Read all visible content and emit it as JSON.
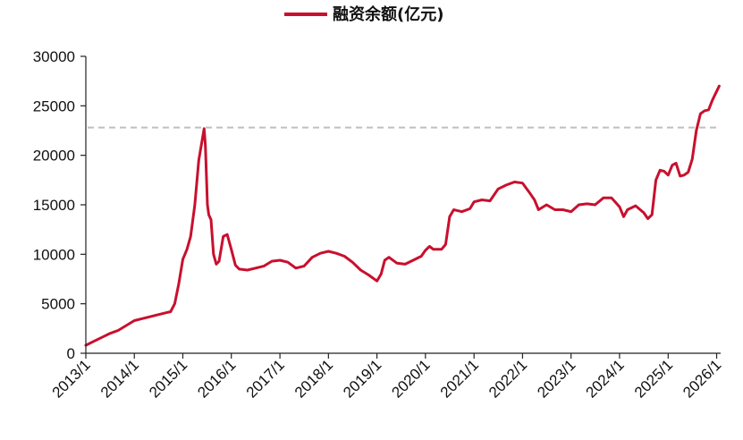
{
  "chart_data": {
    "type": "line",
    "title": "",
    "xlabel": "",
    "ylabel": "",
    "ylim": [
      0,
      30000
    ],
    "yticks": [
      0,
      5000,
      10000,
      15000,
      20000,
      25000,
      30000
    ],
    "xlim": [
      "2013-01-01",
      "2026-01-31"
    ],
    "xticks": [
      {
        "date": "2013-01-01",
        "label": "2013/1"
      },
      {
        "date": "2014-01-01",
        "label": "2014/1"
      },
      {
        "date": "2015-01-01",
        "label": "2015/1"
      },
      {
        "date": "2016-01-01",
        "label": "2016/1"
      },
      {
        "date": "2017-01-01",
        "label": "2017/1"
      },
      {
        "date": "2018-01-01",
        "label": "2018/1"
      },
      {
        "date": "2019-01-01",
        "label": "2019/1"
      },
      {
        "date": "2020-01-01",
        "label": "2020/1"
      },
      {
        "date": "2021-01-01",
        "label": "2021/1"
      },
      {
        "date": "2022-01-01",
        "label": "2022/1"
      },
      {
        "date": "2023-01-01",
        "label": "2023/1"
      },
      {
        "date": "2024-01-01",
        "label": "2024/1"
      },
      {
        "date": "2025-01-01",
        "label": "2025/1"
      },
      {
        "date": "2026-01-01",
        "label": "2026/1"
      }
    ],
    "legend_position": "top-center",
    "grid": false,
    "reference_line": {
      "y": 22800,
      "style": "dashed",
      "color": "#bfbfbf"
    },
    "series": [
      {
        "name": "融资余额(亿元)",
        "color": "#c8102e",
        "points": [
          [
            "2013-01-01",
            800
          ],
          [
            "2013-03-01",
            1200
          ],
          [
            "2013-05-01",
            1600
          ],
          [
            "2013-07-01",
            2000
          ],
          [
            "2013-09-01",
            2300
          ],
          [
            "2013-11-01",
            2800
          ],
          [
            "2014-01-01",
            3300
          ],
          [
            "2014-03-01",
            3500
          ],
          [
            "2014-05-01",
            3700
          ],
          [
            "2014-07-01",
            3900
          ],
          [
            "2014-09-01",
            4100
          ],
          [
            "2014-10-01",
            4200
          ],
          [
            "2014-11-01",
            5000
          ],
          [
            "2014-12-01",
            7000
          ],
          [
            "2015-01-01",
            9500
          ],
          [
            "2015-02-01",
            10500
          ],
          [
            "2015-03-01",
            11800
          ],
          [
            "2015-04-01",
            15000
          ],
          [
            "2015-05-01",
            19500
          ],
          [
            "2015-06-10",
            22700
          ],
          [
            "2015-06-20",
            21000
          ],
          [
            "2015-07-05",
            15000
          ],
          [
            "2015-07-15",
            14000
          ],
          [
            "2015-08-01",
            13500
          ],
          [
            "2015-08-20",
            10000
          ],
          [
            "2015-09-10",
            9000
          ],
          [
            "2015-10-01",
            9300
          ],
          [
            "2015-11-01",
            11800
          ],
          [
            "2015-12-01",
            12000
          ],
          [
            "2016-01-01",
            10500
          ],
          [
            "2016-02-01",
            8900
          ],
          [
            "2016-03-01",
            8500
          ],
          [
            "2016-05-01",
            8400
          ],
          [
            "2016-07-01",
            8600
          ],
          [
            "2016-09-01",
            8800
          ],
          [
            "2016-11-01",
            9300
          ],
          [
            "2017-01-01",
            9400
          ],
          [
            "2017-03-01",
            9200
          ],
          [
            "2017-05-01",
            8600
          ],
          [
            "2017-07-01",
            8800
          ],
          [
            "2017-09-01",
            9700
          ],
          [
            "2017-11-01",
            10100
          ],
          [
            "2018-01-01",
            10300
          ],
          [
            "2018-03-01",
            10100
          ],
          [
            "2018-05-01",
            9800
          ],
          [
            "2018-07-01",
            9200
          ],
          [
            "2018-09-01",
            8400
          ],
          [
            "2018-11-01",
            7900
          ],
          [
            "2019-01-01",
            7300
          ],
          [
            "2019-02-01",
            8000
          ],
          [
            "2019-03-01",
            9400
          ],
          [
            "2019-04-01",
            9700
          ],
          [
            "2019-06-01",
            9100
          ],
          [
            "2019-08-01",
            9000
          ],
          [
            "2019-10-01",
            9400
          ],
          [
            "2019-12-01",
            9800
          ],
          [
            "2020-01-01",
            10400
          ],
          [
            "2020-02-01",
            10800
          ],
          [
            "2020-03-01",
            10500
          ],
          [
            "2020-05-01",
            10500
          ],
          [
            "2020-06-01",
            11000
          ],
          [
            "2020-07-01",
            13800
          ],
          [
            "2020-08-01",
            14500
          ],
          [
            "2020-10-01",
            14300
          ],
          [
            "2020-12-01",
            14600
          ],
          [
            "2021-01-01",
            15300
          ],
          [
            "2021-03-01",
            15500
          ],
          [
            "2021-05-01",
            15400
          ],
          [
            "2021-07-01",
            16600
          ],
          [
            "2021-09-01",
            17000
          ],
          [
            "2021-11-01",
            17300
          ],
          [
            "2022-01-01",
            17200
          ],
          [
            "2022-03-01",
            16100
          ],
          [
            "2022-04-01",
            15500
          ],
          [
            "2022-05-01",
            14500
          ],
          [
            "2022-07-01",
            15000
          ],
          [
            "2022-09-01",
            14500
          ],
          [
            "2022-11-01",
            14500
          ],
          [
            "2023-01-01",
            14300
          ],
          [
            "2023-03-01",
            15000
          ],
          [
            "2023-05-01",
            15100
          ],
          [
            "2023-07-01",
            15000
          ],
          [
            "2023-09-01",
            15700
          ],
          [
            "2023-11-01",
            15700
          ],
          [
            "2024-01-01",
            14800
          ],
          [
            "2024-02-01",
            13800
          ],
          [
            "2024-03-01",
            14500
          ],
          [
            "2024-05-01",
            14900
          ],
          [
            "2024-07-01",
            14200
          ],
          [
            "2024-08-01",
            13600
          ],
          [
            "2024-09-01",
            14000
          ],
          [
            "2024-10-01",
            17500
          ],
          [
            "2024-11-01",
            18500
          ],
          [
            "2024-12-01",
            18400
          ],
          [
            "2025-01-01",
            18000
          ],
          [
            "2025-02-01",
            19000
          ],
          [
            "2025-03-01",
            19200
          ],
          [
            "2025-04-01",
            17900
          ],
          [
            "2025-05-01",
            18000
          ],
          [
            "2025-06-01",
            18300
          ],
          [
            "2025-07-01",
            19600
          ],
          [
            "2025-08-01",
            22500
          ],
          [
            "2025-09-01",
            24200
          ],
          [
            "2025-10-01",
            24500
          ],
          [
            "2025-11-01",
            24600
          ],
          [
            "2025-12-01",
            25600
          ],
          [
            "2026-01-20",
            27000
          ]
        ]
      }
    ]
  }
}
